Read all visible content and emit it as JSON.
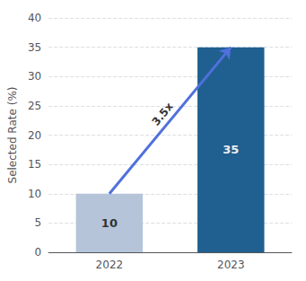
{
  "chart_data": {
    "type": "bar",
    "categories": [
      "2022",
      "2023"
    ],
    "values": [
      10,
      35
    ],
    "colors": [
      "#b5c4d9",
      "#1f6090"
    ],
    "ylabel": "Selected Rate (%)",
    "ylim": [
      0,
      40
    ],
    "yticks": [
      0,
      5,
      10,
      15,
      20,
      25,
      30,
      35,
      40
    ],
    "grid": true,
    "data_labels": true,
    "annotation": "3.5x"
  }
}
